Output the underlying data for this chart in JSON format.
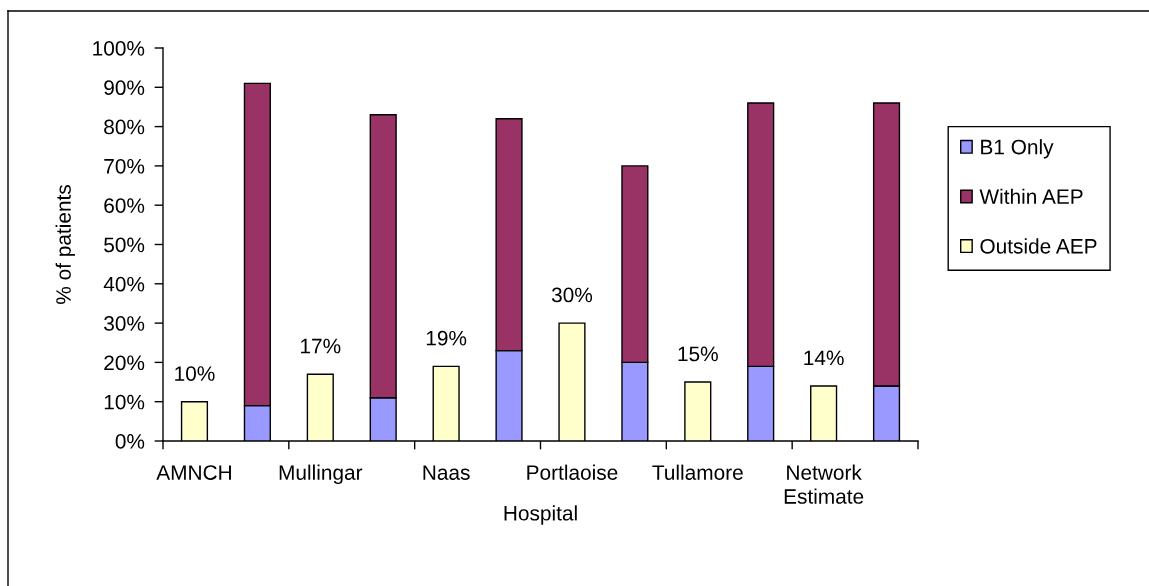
{
  "chart_data": {
    "type": "bar",
    "stacked": true,
    "xlabel": "Hospital",
    "ylabel": "% of patients",
    "categories": [
      "AMNCH",
      null,
      "Mullingar",
      null,
      "Naas",
      null,
      "Portlaoise",
      null,
      "Tullamore",
      null,
      "Network Estimate",
      null
    ],
    "series": [
      {
        "name": "B1 Only",
        "color": "#9999ff",
        "values": [
          null,
          9,
          null,
          11,
          null,
          23,
          null,
          20,
          null,
          19,
          null,
          14
        ]
      },
      {
        "name": "Within AEP",
        "color": "#993366",
        "values": [
          null,
          82,
          null,
          72,
          null,
          59,
          null,
          50,
          null,
          67,
          null,
          72
        ]
      },
      {
        "name": "Outside AEP",
        "color": "#ffffcc",
        "values": [
          10,
          null,
          17,
          null,
          19,
          null,
          30,
          null,
          15,
          null,
          14,
          null
        ],
        "value_labels": [
          "10%",
          null,
          "17%",
          null,
          "19%",
          null,
          "30%",
          null,
          "15%",
          null,
          "14%",
          null
        ]
      }
    ],
    "ylim": [
      0,
      100
    ],
    "yticks": [
      {
        "value": 0,
        "label": "0%"
      },
      {
        "value": 10,
        "label": "10%"
      },
      {
        "value": 20,
        "label": "20%"
      },
      {
        "value": 30,
        "label": "30%"
      },
      {
        "value": 40,
        "label": "40%"
      },
      {
        "value": 50,
        "label": "50%"
      },
      {
        "value": 60,
        "label": "60%"
      },
      {
        "value": 70,
        "label": "70%"
      },
      {
        "value": 80,
        "label": "80%"
      },
      {
        "value": 90,
        "label": "90%"
      },
      {
        "value": 100,
        "label": "100%"
      }
    ],
    "legend": "right",
    "grid": false
  }
}
